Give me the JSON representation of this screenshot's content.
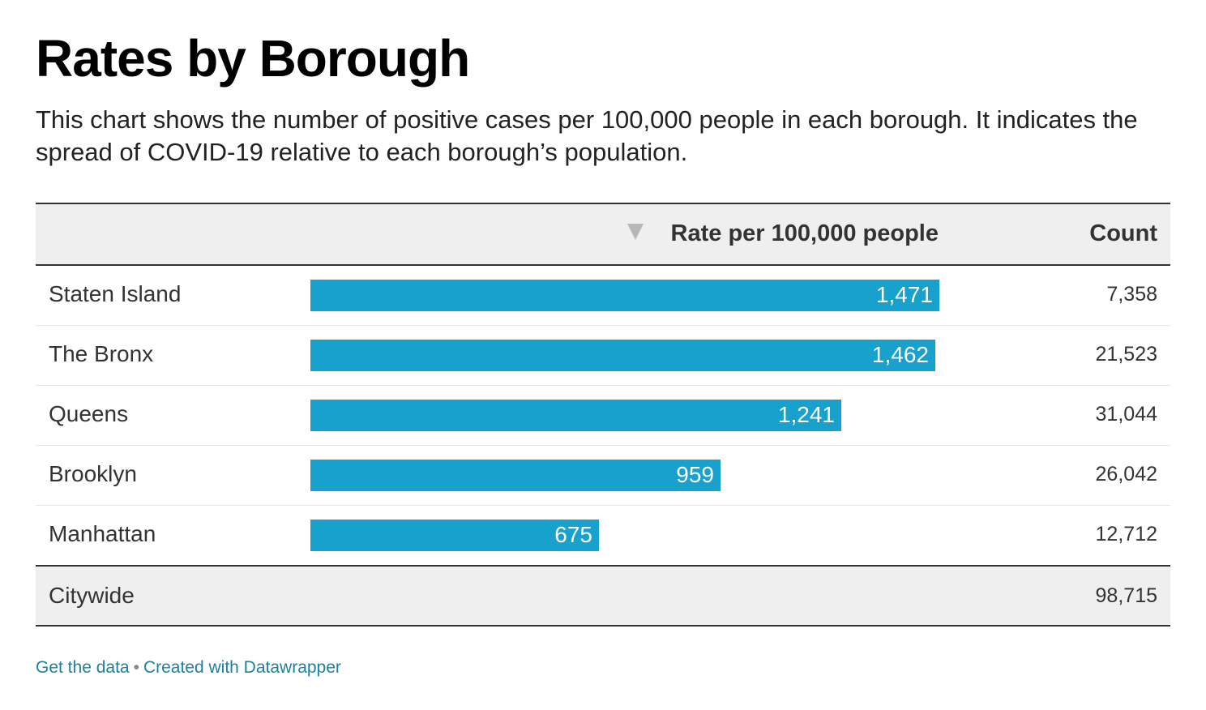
{
  "title": "Rates by Borough",
  "description": "This chart shows the number of positive cases per 100,000 people in each borough. It indicates the spread of COVID-19 relative to each borough’s population.",
  "columns": {
    "rate_header": "Rate per 100,000 people",
    "count_header": "Count",
    "sort_icon": "sort-descending-icon"
  },
  "colors": {
    "bar": "#18a1cd",
    "link": "#1d81a2"
  },
  "chart_data": {
    "type": "bar",
    "orientation": "horizontal",
    "categories": [
      "Staten Island",
      "The Bronx",
      "Queens",
      "Brooklyn",
      "Manhattan"
    ],
    "values": [
      1471,
      1462,
      1241,
      959,
      675
    ],
    "value_labels": [
      "1,471",
      "1,462",
      "1,241",
      "959",
      "675"
    ],
    "counts": [
      "7,358",
      "21,523",
      "31,044",
      "26,042",
      "12,712"
    ],
    "title": "Rates by Borough",
    "xlabel": "Rate per 100,000 people",
    "ylabel": "",
    "xlim": [
      0,
      1471
    ]
  },
  "total": {
    "label": "Citywide",
    "count": "98,715"
  },
  "footer": {
    "get_data": "Get the data",
    "separator": "•",
    "created_with": "Created with Datawrapper"
  }
}
